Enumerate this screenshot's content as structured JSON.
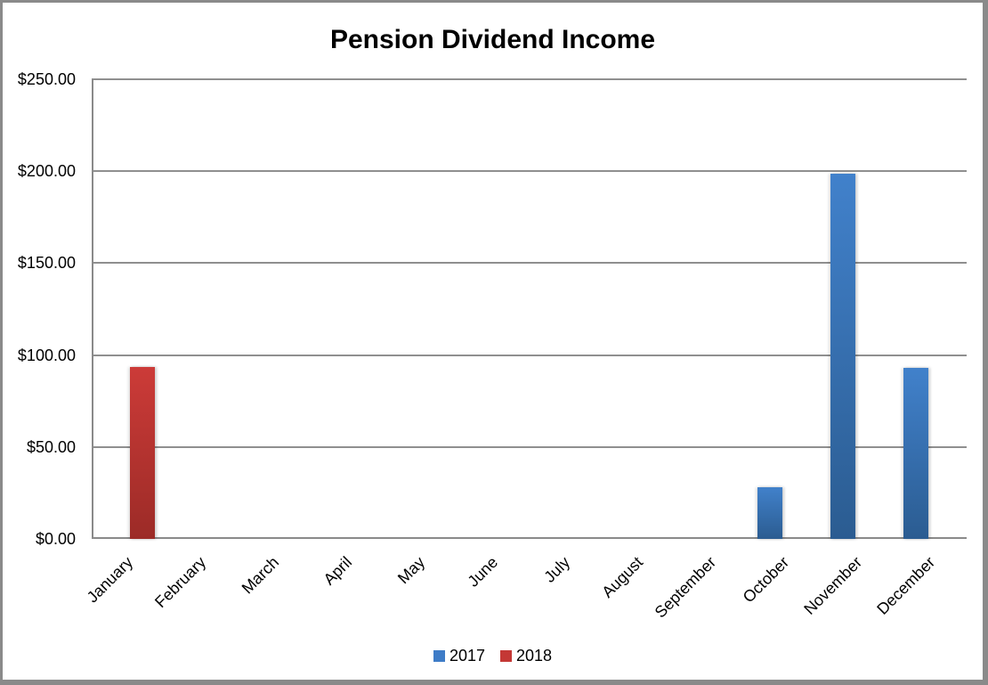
{
  "frame": {
    "border_color": "#8A8A8A",
    "background": "#FFFFFF"
  },
  "chart_data": {
    "type": "bar",
    "title": "Pension Dividend Income",
    "categories": [
      "January",
      "February",
      "March",
      "April",
      "May",
      "June",
      "July",
      "August",
      "September",
      "October",
      "November",
      "December"
    ],
    "series": [
      {
        "name": "2017",
        "color": "#3E7CC7",
        "gradient_top": "#4181CB",
        "gradient_bottom": "#2B5C91",
        "values": [
          0,
          0,
          0,
          0,
          0,
          0,
          0,
          0,
          0,
          28,
          198.5,
          93
        ]
      },
      {
        "name": "2018",
        "color": "#C43835",
        "gradient_top": "#CC3B38",
        "gradient_bottom": "#9C2B27",
        "values": [
          93.5,
          0,
          0,
          0,
          0,
          0,
          0,
          0,
          0,
          0,
          0,
          0
        ]
      }
    ],
    "xlabel": "",
    "ylabel": "",
    "ylim": [
      0,
      250
    ],
    "ytick_step": 50,
    "ytick_labels": [
      "$0.00",
      "$50.00",
      "$100.00",
      "$150.00",
      "$200.00",
      "$250.00"
    ],
    "grid": true,
    "gridline_color": "#8F8F8F",
    "axis_color": "#8A8A8A",
    "legend_position": "bottom",
    "text_color": "#000000"
  }
}
